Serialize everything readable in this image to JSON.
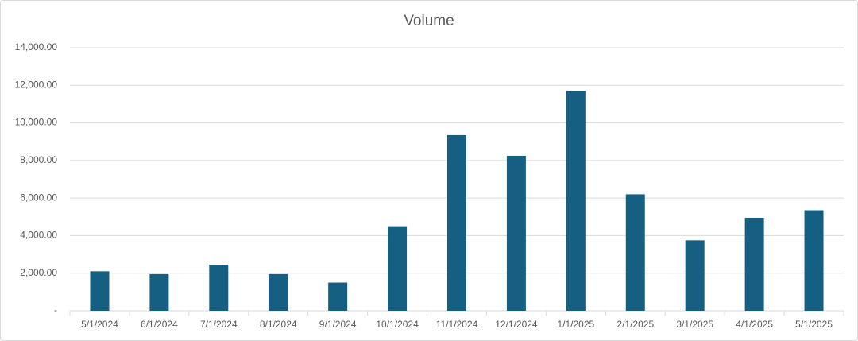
{
  "chart_data": {
    "type": "bar",
    "title": "Volume",
    "categories": [
      "5/1/2024",
      "6/1/2024",
      "7/1/2024",
      "8/1/2024",
      "9/1/2024",
      "10/1/2024",
      "11/1/2024",
      "12/1/2024",
      "1/1/2025",
      "2/1/2025",
      "3/1/2025",
      "4/1/2025",
      "5/1/2025"
    ],
    "values": [
      2100,
      1950,
      2450,
      1950,
      1500,
      4500,
      9350,
      8250,
      11700,
      6200,
      3750,
      4950,
      5350
    ],
    "color": "#156082",
    "ylim": [
      0,
      14000
    ],
    "yticks": [
      {
        "value": 0,
        "label": "-"
      },
      {
        "value": 2000,
        "label": "2,000.00"
      },
      {
        "value": 4000,
        "label": "4,000.00"
      },
      {
        "value": 6000,
        "label": "6,000.00"
      },
      {
        "value": 8000,
        "label": "8,000.00"
      },
      {
        "value": 10000,
        "label": "10,000.00"
      },
      {
        "value": 12000,
        "label": "12,000.00"
      },
      {
        "value": 14000,
        "label": "14,000.00"
      }
    ],
    "grid": true
  }
}
